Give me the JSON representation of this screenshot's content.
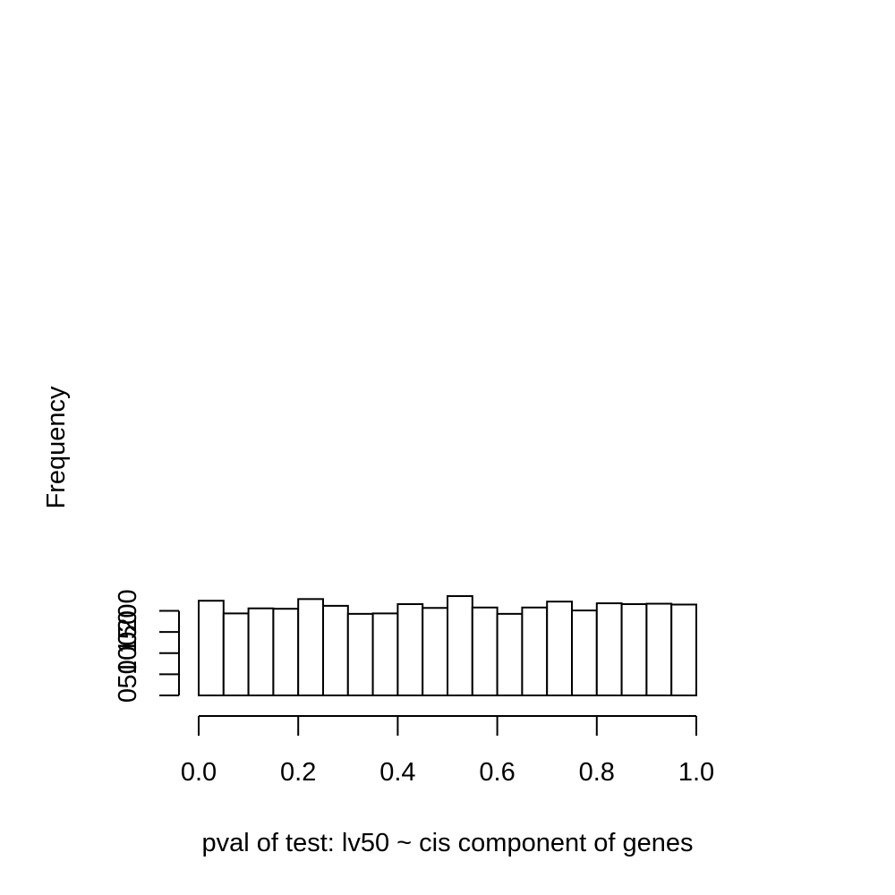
{
  "chart_data": {
    "type": "bar",
    "title": "",
    "xlabel": "pval of test: lv50 ~ cis component of genes",
    "ylabel": "Frequency",
    "bins": [
      [
        0.0,
        0.05
      ],
      [
        0.05,
        0.1
      ],
      [
        0.1,
        0.15
      ],
      [
        0.15,
        0.2
      ],
      [
        0.2,
        0.25
      ],
      [
        0.25,
        0.3
      ],
      [
        0.3,
        0.35
      ],
      [
        0.35,
        0.4
      ],
      [
        0.4,
        0.45
      ],
      [
        0.45,
        0.5
      ],
      [
        0.5,
        0.55
      ],
      [
        0.55,
        0.6
      ],
      [
        0.6,
        0.65
      ],
      [
        0.65,
        0.7
      ],
      [
        0.7,
        0.75
      ],
      [
        0.75,
        0.8
      ],
      [
        0.8,
        0.85
      ],
      [
        0.85,
        0.9
      ],
      [
        0.9,
        0.95
      ],
      [
        0.95,
        1.0
      ]
    ],
    "values": [
      224,
      194,
      206,
      205,
      228,
      212,
      193,
      194,
      216,
      207,
      235,
      208,
      193,
      208,
      222,
      201,
      218,
      216,
      217,
      215
    ],
    "xlim": [
      0,
      1
    ],
    "ylim": [
      0,
      240
    ],
    "x_ticks": [
      0.0,
      0.2,
      0.4,
      0.6,
      0.8,
      1.0
    ],
    "x_tick_labels": [
      "0.0",
      "0.2",
      "0.4",
      "0.6",
      "0.8",
      "1.0"
    ],
    "y_ticks": [
      0,
      50,
      100,
      150,
      200
    ],
    "y_tick_labels": [
      "0",
      "50",
      "100",
      "150",
      "200"
    ],
    "grid": false,
    "bar_fill": "#ffffff",
    "bar_stroke": "#000000"
  }
}
